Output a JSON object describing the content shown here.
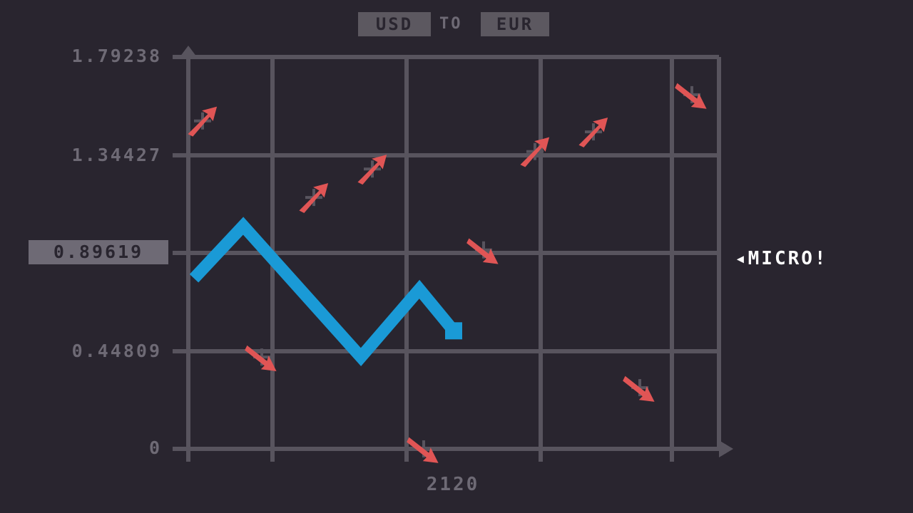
{
  "title": {
    "from_currency": "USD",
    "connector": "TO",
    "to_currency": "EUR"
  },
  "y_ticks": [
    "1.79238",
    "1.34427",
    "0.89619",
    "0.44809",
    "0"
  ],
  "y_cursor_value": "0.89619",
  "x_tick": "2120",
  "callout": "◂MICRO!",
  "colors": {
    "background": "#29252f",
    "grid": "#58545e",
    "label": "#6e6a75",
    "line": "#1a9ad6",
    "marker": "#e05555",
    "callout": "#ffffff"
  },
  "chart_data": {
    "type": "line",
    "y_ticks": [
      1.79238,
      1.34427,
      0.89619,
      0.44809,
      0
    ],
    "ylim": [
      0,
      1.79238
    ],
    "x_ticks": [
      "2120"
    ],
    "series": [
      {
        "values": [
          0.78,
          1.02,
          0.42,
          0.73,
          0.54
        ]
      }
    ],
    "markers": [
      {
        "direction": "up",
        "y": 1.5
      },
      {
        "direction": "down",
        "y": 0.42
      },
      {
        "direction": "up",
        "y": 1.15
      },
      {
        "direction": "up",
        "y": 1.28
      },
      {
        "direction": "down",
        "y": 0
      },
      {
        "direction": "down",
        "y": 0.91
      },
      {
        "direction": "up",
        "y": 1.36
      },
      {
        "direction": "up",
        "y": 1.45
      },
      {
        "direction": "down",
        "y": 0.28
      },
      {
        "direction": "down",
        "y": 1.62
      }
    ]
  }
}
